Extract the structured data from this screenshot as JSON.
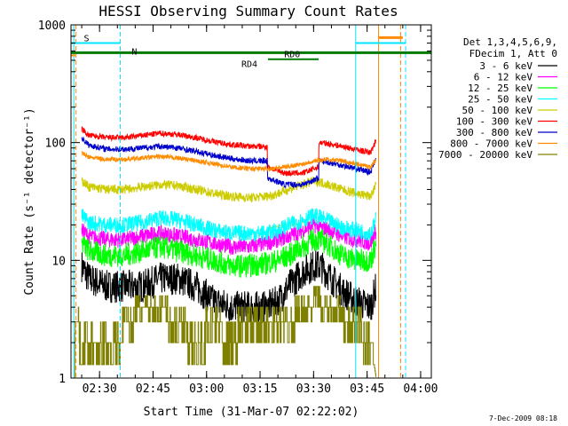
{
  "chart_data": {
    "type": "line",
    "title": "HESSI Observing Summary Count Rates",
    "xlabel": "Start Time (31-Mar-07 02:22:02)",
    "ylabel": "Count Rate (s⁻¹ detector⁻¹)",
    "y_scale": "log",
    "ylim": [
      1,
      1000
    ],
    "x_unit": "minutes after 02:22:02",
    "xlim": [
      0,
      101
    ],
    "x_ticks": [
      {
        "t": 8,
        "label": "02:30"
      },
      {
        "t": 23,
        "label": "02:45"
      },
      {
        "t": 38,
        "label": "03:00"
      },
      {
        "t": 53,
        "label": "03:15"
      },
      {
        "t": 68,
        "label": "03:30"
      },
      {
        "t": 83,
        "label": "03:45"
      },
      {
        "t": 98,
        "label": "04:00"
      }
    ],
    "y_ticks": [
      {
        "v": 1,
        "label": "1"
      },
      {
        "v": 10,
        "label": "10"
      },
      {
        "v": 100,
        "label": "100"
      },
      {
        "v": 1000,
        "label": "1000"
      }
    ],
    "legend_header": [
      "Det 1,3,4,5,6,9,",
      "FDecim 1, Att 0"
    ],
    "legend_position": "right",
    "flags": [
      {
        "label": "S",
        "color": "#ff8c00"
      },
      {
        "label": "N",
        "color": "#00e5ff"
      },
      {
        "label": "RD0",
        "color": "#007a00"
      },
      {
        "label": "RD4",
        "color": "#007a00"
      }
    ],
    "series": [
      {
        "name": "3 - 6 keV",
        "color": "#000000",
        "noise": 0.14,
        "x": [
          3,
          5,
          10,
          15,
          20,
          25,
          30,
          35,
          40,
          45,
          50,
          55,
          58,
          61,
          65,
          68,
          70,
          73,
          76,
          80,
          84,
          85.5
        ],
        "y": [
          9,
          7,
          6,
          6,
          6,
          7,
          7,
          6,
          4.5,
          4,
          4,
          4,
          4.5,
          6,
          8,
          9,
          9,
          7,
          5.5,
          4.5,
          4,
          6
        ]
      },
      {
        "name": "6 - 12 keV",
        "color": "#ff00ff",
        "noise": 0.07,
        "x": [
          3,
          5,
          10,
          15,
          20,
          25,
          30,
          35,
          40,
          45,
          50,
          55,
          58,
          61,
          65,
          68,
          70,
          73,
          76,
          80,
          84,
          85.5
        ],
        "y": [
          18,
          16,
          15,
          15,
          16,
          17,
          16,
          15,
          14,
          13,
          13,
          14,
          15,
          16,
          18,
          20,
          19,
          18,
          16,
          15,
          14,
          18
        ]
      },
      {
        "name": "12 - 25 keV",
        "color": "#00ff00",
        "noise": 0.1,
        "x": [
          3,
          5,
          10,
          15,
          20,
          25,
          30,
          35,
          40,
          45,
          50,
          55,
          58,
          61,
          65,
          68,
          70,
          73,
          76,
          80,
          84,
          85.5
        ],
        "y": [
          14,
          12,
          11,
          11,
          12,
          13,
          12,
          11,
          10,
          9,
          9,
          9.5,
          10,
          11,
          13,
          15,
          15,
          13,
          11,
          10,
          10,
          14
        ]
      },
      {
        "name": "25 - 50 keV",
        "color": "#00ffff",
        "noise": 0.07,
        "x": [
          3,
          5,
          10,
          15,
          20,
          25,
          30,
          35,
          40,
          45,
          50,
          55,
          58,
          61,
          65,
          68,
          70,
          73,
          76,
          80,
          84,
          85.5
        ],
        "y": [
          24,
          21,
          20,
          20,
          21,
          23,
          22,
          20,
          18,
          17,
          17,
          17,
          18,
          20,
          22,
          24,
          23,
          21,
          19,
          18,
          17,
          22
        ]
      },
      {
        "name": "50 - 100 keV",
        "color": "#cccc00",
        "noise": 0.04,
        "x": [
          3,
          5,
          10,
          15,
          20,
          25,
          30,
          35,
          40,
          45,
          50,
          55,
          58,
          61,
          65,
          68,
          70,
          73,
          76,
          80,
          84,
          85.5
        ],
        "y": [
          48,
          42,
          40,
          40,
          42,
          44,
          43,
          40,
          37,
          35,
          34,
          35,
          37,
          40,
          44,
          47,
          46,
          43,
          40,
          37,
          35,
          44
        ]
      },
      {
        "name": "100 - 300 keV",
        "color": "#ff0000",
        "noise": 0.025,
        "x": [
          3,
          5,
          10,
          15,
          20,
          25,
          30,
          35,
          40,
          45,
          50,
          55,
          55.1,
          60,
          65,
          68,
          69.4,
          69.5,
          72,
          76,
          80,
          84,
          85.5
        ],
        "y": [
          130,
          115,
          110,
          110,
          115,
          120,
          117,
          110,
          102,
          96,
          93,
          92,
          62,
          55,
          55,
          60,
          62,
          100,
          98,
          93,
          87,
          82,
          105
        ]
      },
      {
        "name": "300 - 800 keV",
        "color": "#0000cc",
        "noise": 0.025,
        "x": [
          3,
          5,
          10,
          15,
          20,
          25,
          30,
          35,
          40,
          45,
          50,
          55,
          55.1,
          60,
          65,
          68,
          69.4,
          69.5,
          72,
          76,
          80,
          84,
          85.5
        ],
        "y": [
          110,
          95,
          88,
          88,
          90,
          93,
          90,
          84,
          78,
          73,
          70,
          70,
          50,
          44,
          44,
          48,
          50,
          70,
          68,
          64,
          60,
          56,
          75
        ]
      },
      {
        "name": "800 - 7000 keV",
        "color": "#ff8c00",
        "noise": 0.02,
        "x": [
          3,
          5,
          10,
          15,
          20,
          25,
          30,
          35,
          40,
          45,
          50,
          55,
          60,
          65,
          68,
          72,
          76,
          80,
          84,
          85.5
        ],
        "y": [
          82,
          75,
          72,
          72,
          74,
          76,
          74,
          70,
          66,
          62,
          60,
          60,
          62,
          66,
          70,
          72,
          70,
          66,
          62,
          72
        ]
      },
      {
        "name": "7000 - 20000 keV",
        "color": "#808000",
        "noise": 0,
        "x": [
          0,
          1,
          1.1,
          2,
          2.1,
          14,
          14.1,
          15,
          16,
          20,
          25,
          30,
          35,
          40,
          45,
          48,
          52,
          55,
          60,
          65,
          68,
          69,
          71,
          74,
          77,
          80,
          84,
          85.5
        ],
        "y": [
          1,
          1,
          3,
          3,
          2,
          2,
          3,
          4,
          3,
          4.5,
          4,
          3,
          2,
          3,
          2,
          3,
          3,
          3,
          3,
          4,
          4.5,
          5,
          4,
          4,
          3,
          3,
          2,
          1
        ]
      }
    ],
    "background_series": [
      {
        "color": "#cccc00",
        "note": "step",
        "x": [
          55.1,
          56,
          60,
          62,
          65,
          66,
          69.4
        ],
        "y": [
          18,
          19,
          20,
          20,
          21,
          21,
          21
        ]
      }
    ]
  },
  "footer_date": "7-Dec-2009 08:18"
}
